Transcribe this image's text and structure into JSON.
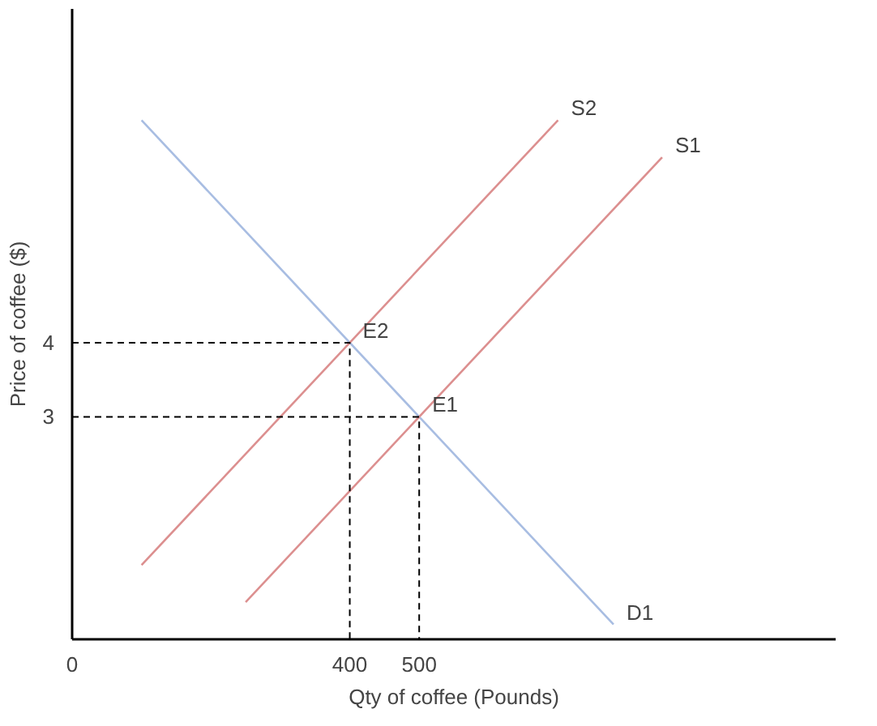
{
  "chart_data": {
    "type": "line",
    "xlabel": "Qty of coffee (Pounds)",
    "ylabel": "Price of coffee ($)",
    "xlim": [
      0,
      1100
    ],
    "ylim": [
      0,
      8.5
    ],
    "xticks": [
      0,
      400,
      500
    ],
    "yticks": [
      3,
      4
    ],
    "grid": false,
    "marker": "none",
    "series": [
      {
        "color": "#a8bde2",
        "x": [
          100,
          780
        ],
        "values": [
          7,
          0.2
        ]
      },
      {
        "color": "#dc8f8f",
        "x": [
          100,
          700
        ],
        "values": [
          1,
          7
        ]
      },
      {
        "color": "#dc8f8f",
        "x": [
          250,
          850
        ],
        "values": [
          0.5,
          6.5
        ]
      },
      {
        "color": "#000000",
        "line_style": "dashed",
        "x": [
          0,
          400,
          400
        ],
        "values": [
          4,
          4,
          0
        ]
      },
      {
        "color": "#000000",
        "line_style": "dashed",
        "x": [
          0,
          500,
          500
        ],
        "values": [
          3,
          3,
          0
        ]
      }
    ],
    "annotations": [
      {
        "text": "D1",
        "x": 780,
        "y": 0.2
      },
      {
        "text": "S2",
        "x": 700,
        "y": 7
      },
      {
        "text": "S1",
        "x": 850,
        "y": 6.5
      },
      {
        "text": "E2",
        "x": 400,
        "y": 4
      },
      {
        "text": "E1",
        "x": 500,
        "y": 3
      }
    ]
  }
}
